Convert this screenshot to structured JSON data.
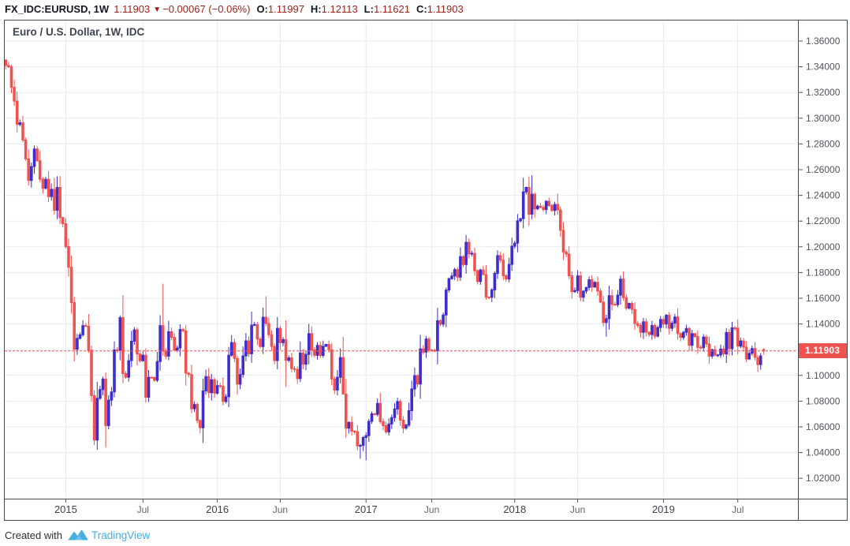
{
  "legend": {
    "symbol": "FX_IDC:EURUSD, 1W",
    "last": "1.11903",
    "direction_icon": "▼",
    "change": "−0.00067 (−0.06%)",
    "ohlc": [
      {
        "label": "O:",
        "value": "1.11997"
      },
      {
        "label": "H:",
        "value": "1.12113"
      },
      {
        "label": "L:",
        "value": "1.11621"
      },
      {
        "label": "C:",
        "value": "1.11903"
      }
    ]
  },
  "chart": {
    "title": "Euro / U.S. Dollar, 1W, IDC",
    "last_price_label": "1.11903"
  },
  "footer": {
    "created_with": "Created with",
    "brand": "TradingView",
    "logo_icon": "tradingview-logo"
  },
  "colors": {
    "up_candle": "#3d2dcd",
    "down_candle": "#ef5350",
    "price_label_bg": "#ef5350",
    "current_price_line": "#ef5350",
    "grid": "#e5ebf3",
    "border": "#454a55",
    "legend_red": "#9f221a",
    "axis_text": "#50535e",
    "month_text": "#62656f",
    "year_text": "#3f424c",
    "brand_blue": "#45aee2"
  },
  "chart_data": {
    "type": "candlestick",
    "title": "Euro / U.S. Dollar, 1W, IDC",
    "symbol": "FX_IDC:EURUSD",
    "interval": "1W",
    "grid": true,
    "legend_position": "top-left",
    "price_axis_side": "right",
    "price_format_decimals": 5,
    "price_ticks": [
      1.36,
      1.34,
      1.32,
      1.3,
      1.28,
      1.26,
      1.24,
      1.22,
      1.2,
      1.18,
      1.16,
      1.14,
      1.12,
      1.1,
      1.08,
      1.06,
      1.04,
      1.02
    ],
    "y_range": [
      1.006,
      1.378
    ],
    "time_ticks": [
      {
        "label": "2015",
        "week": 21,
        "year": true
      },
      {
        "label": "Jul",
        "week": 48,
        "year": false
      },
      {
        "label": "2016",
        "week": 74,
        "year": true
      },
      {
        "label": "Jun",
        "week": 96,
        "year": false
      },
      {
        "label": "2017",
        "week": 126,
        "year": true
      },
      {
        "label": "Jun",
        "week": 149,
        "year": false
      },
      {
        "label": "2018",
        "week": 178,
        "year": true
      },
      {
        "label": "Jun",
        "week": 200,
        "year": false
      },
      {
        "label": "2019",
        "week": 230,
        "year": true
      },
      {
        "label": "Jul",
        "week": 256,
        "year": false
      }
    ],
    "current_price": 1.11903,
    "last_bar": {
      "open": 1.11997,
      "high": 1.12113,
      "low": 1.11621,
      "close": 1.11903
    },
    "first_bar_open": 1.3452,
    "weekly_closes": [
      1.341,
      1.3399,
      1.324,
      1.3133,
      1.2952,
      1.2964,
      1.283,
      1.2683,
      1.2516,
      1.2624,
      1.2761,
      1.267,
      1.2526,
      1.2455,
      1.2525,
      1.239,
      1.2447,
      1.2284,
      1.2462,
      1.2227,
      1.218,
      1.2002,
      1.1841,
      1.1567,
      1.1204,
      1.1288,
      1.1316,
      1.1387,
      1.1382,
      1.1196,
      1.0843,
      1.0497,
      1.0822,
      1.089,
      1.0972,
      1.061,
      1.0808,
      1.0872,
      1.1198,
      1.1197,
      1.1449,
      1.1014,
      1.0986,
      1.1115,
      1.1266,
      1.1354,
      1.1167,
      1.1114,
      1.1157,
      1.083,
      1.0985,
      1.0984,
      1.0962,
      1.1108,
      1.1387,
      1.1189,
      1.115,
      1.134,
      1.1296,
      1.1198,
      1.1213,
      1.1357,
      1.1347,
      1.1017,
      1.1007,
      1.0741,
      1.0774,
      1.0649,
      1.0593,
      1.088,
      1.0991,
      1.0866,
      1.0967,
      1.0862,
      1.0921,
      1.0916,
      1.0797,
      1.0834,
      1.1157,
      1.1256,
      1.1132,
      1.0932,
      1.1007,
      1.1152,
      1.1269,
      1.1168,
      1.1391,
      1.1396,
      1.1283,
      1.1224,
      1.1453,
      1.1404,
      1.1316,
      1.1225,
      1.1115,
      1.1366,
      1.1254,
      1.1279,
      1.1117,
      1.1136,
      1.1053,
      1.1046,
      1.0975,
      1.1174,
      1.1087,
      1.1163,
      1.1325,
      1.1198,
      1.1157,
      1.1234,
      1.1155,
      1.1226,
      1.1241,
      1.1201,
      1.0972,
      1.0886,
      1.0985,
      1.1139,
      1.0855,
      1.059,
      1.0635,
      1.0566,
      1.0562,
      1.0452,
      1.0456,
      1.0517,
      1.0532,
      1.0643,
      1.0702,
      1.0698,
      1.0783,
      1.0641,
      1.0609,
      1.0561,
      1.0623,
      1.0672,
      1.0739,
      1.0797,
      1.0652,
      1.059,
      1.0614,
      1.0726,
      1.0895,
      1.0999,
      1.0933,
      1.1206,
      1.1181,
      1.1283,
      1.1197,
      1.1195,
      1.1193,
      1.1426,
      1.1399,
      1.147,
      1.1664,
      1.1752,
      1.1773,
      1.1823,
      1.1764,
      1.1924,
      1.1862,
      1.2035,
      1.1945,
      1.195,
      1.1814,
      1.173,
      1.182,
      1.1784,
      1.161,
      1.1608,
      1.1665,
      1.1793,
      1.1932,
      1.1896,
      1.1775,
      1.1749,
      1.1864,
      1.2005,
      1.2029,
      1.2202,
      1.2219,
      1.2427,
      1.2462,
      1.2253,
      1.2409,
      1.2295,
      1.2316,
      1.2307,
      1.229,
      1.2354,
      1.2321,
      1.2282,
      1.233,
      1.2287,
      1.2128,
      1.196,
      1.1944,
      1.1774,
      1.1651,
      1.166,
      1.1774,
      1.1608,
      1.1655,
      1.1684,
      1.1744,
      1.1687,
      1.1724,
      1.1656,
      1.157,
      1.1411,
      1.1441,
      1.162,
      1.1552,
      1.155,
      1.1624,
      1.1749,
      1.1604,
      1.1523,
      1.156,
      1.1513,
      1.1403,
      1.1389,
      1.1335,
      1.1417,
      1.1336,
      1.1318,
      1.1388,
      1.1306,
      1.1372,
      1.1435,
      1.1399,
      1.1468,
      1.1366,
      1.1406,
      1.1454,
      1.1325,
      1.1295,
      1.1335,
      1.1365,
      1.1234,
      1.1325,
      1.1302,
      1.1218,
      1.1216,
      1.1299,
      1.1245,
      1.115,
      1.12,
      1.1157,
      1.1159,
      1.1205,
      1.1168,
      1.1334,
      1.1208,
      1.137,
      1.1368,
      1.1228,
      1.1269,
      1.122,
      1.1128,
      1.1172,
      1.1209,
      1.114,
      1.1084,
      1.1152,
      1.11903
    ],
    "wick_extremes": [
      {
        "week": 31,
        "low": 1.0457
      },
      {
        "week": 40,
        "high": 1.1467
      },
      {
        "week": 55,
        "high": 1.1713
      },
      {
        "week": 91,
        "high": 1.1616
      },
      {
        "week": 98,
        "high": 1.1428,
        "low": 1.0912
      },
      {
        "week": 118,
        "high": 1.1299,
        "low": 1.0851
      },
      {
        "week": 124,
        "low": 1.0352
      },
      {
        "week": 126,
        "low": 1.034
      },
      {
        "week": 161,
        "high": 1.2092
      },
      {
        "week": 181,
        "high": 1.2537
      },
      {
        "week": 184,
        "high": 1.2556
      },
      {
        "week": 193,
        "high": 1.2414
      },
      {
        "week": 210,
        "low": 1.1301
      },
      {
        "week": 263,
        "low": 1.1027
      }
    ]
  }
}
